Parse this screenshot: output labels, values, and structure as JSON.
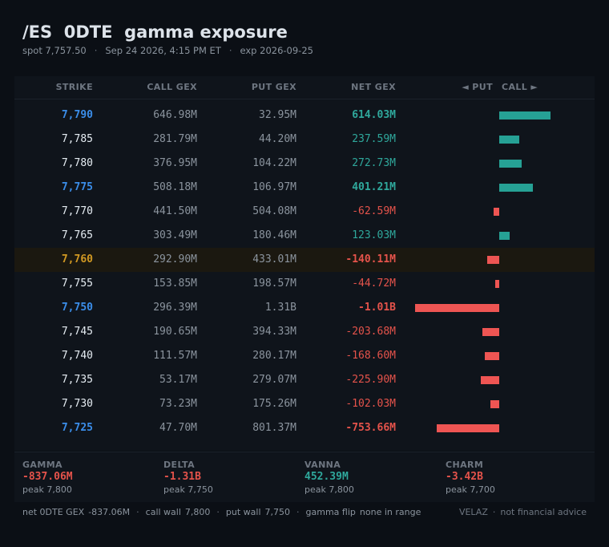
{
  "header": {
    "title": "/ES  0DTE  gamma exposure",
    "spot": "spot 7,757.50",
    "datetime": "Sep 24 2026, 4:15 PM ET",
    "expiry": "exp 2026-09-25",
    "separator": "·"
  },
  "columns": {
    "strike": "STRIKE",
    "call_gex": "CALL GEX",
    "put_gex": "PUT GEX",
    "net_gex": "NET GEX",
    "put_side": "◄ PUT",
    "call_side": "CALL ►"
  },
  "rows": [
    {
      "strike": "7,790",
      "call": "646.98M",
      "put": "32.95M",
      "net": "614.03M",
      "kind": "key"
    },
    {
      "strike": "7,785",
      "call": "281.79M",
      "put": "44.20M",
      "net": "237.59M",
      "kind": ""
    },
    {
      "strike": "7,780",
      "call": "376.95M",
      "put": "104.22M",
      "net": "272.73M",
      "kind": ""
    },
    {
      "strike": "7,775",
      "call": "508.18M",
      "put": "106.97M",
      "net": "401.21M",
      "kind": "key"
    },
    {
      "strike": "7,770",
      "call": "441.50M",
      "put": "504.08M",
      "net": "-62.59M",
      "kind": ""
    },
    {
      "strike": "7,765",
      "call": "303.49M",
      "put": "180.46M",
      "net": "123.03M",
      "kind": ""
    },
    {
      "strike": "7,760",
      "call": "292.90M",
      "put": "433.01M",
      "net": "-140.11M",
      "kind": "spot"
    },
    {
      "strike": "7,755",
      "call": "153.85M",
      "put": "198.57M",
      "net": "-44.72M",
      "kind": ""
    },
    {
      "strike": "7,750",
      "call": "296.39M",
      "put": "1.31B",
      "net": "-1.01B",
      "kind": "key"
    },
    {
      "strike": "7,745",
      "call": "190.65M",
      "put": "394.33M",
      "net": "-203.68M",
      "kind": ""
    },
    {
      "strike": "7,740",
      "call": "111.57M",
      "put": "280.17M",
      "net": "-168.60M",
      "kind": ""
    },
    {
      "strike": "7,735",
      "call": "53.17M",
      "put": "279.07M",
      "net": "-225.90M",
      "kind": ""
    },
    {
      "strike": "7,730",
      "call": "73.23M",
      "put": "175.26M",
      "net": "-102.03M",
      "kind": ""
    },
    {
      "strike": "7,725",
      "call": "47.70M",
      "put": "801.37M",
      "net": "-753.66M",
      "kind": "key"
    }
  ],
  "chart_data": {
    "type": "bar",
    "orientation": "horizontal",
    "categories": [
      "7,790",
      "7,785",
      "7,780",
      "7,775",
      "7,770",
      "7,765",
      "7,760",
      "7,755",
      "7,750",
      "7,745",
      "7,740",
      "7,735",
      "7,730",
      "7,725"
    ],
    "values": [
      614.03,
      237.59,
      272.73,
      401.21,
      -62.59,
      123.03,
      -140.11,
      -44.72,
      -1010,
      -203.68,
      -168.6,
      -225.9,
      -102.03,
      -753.66
    ],
    "unit": "M",
    "colors": {
      "positive": "#26a195",
      "negative": "#ee5553"
    }
  },
  "summary": [
    {
      "label": "GAMMA",
      "value": "-837.06M",
      "peak": "peak 7,800",
      "sign": "neg"
    },
    {
      "label": "DELTA",
      "value": "-1.31B",
      "peak": "peak 7,750",
      "sign": "neg"
    },
    {
      "label": "VANNA",
      "value": "452.39M",
      "peak": "peak 7,800",
      "sign": "pos"
    },
    {
      "label": "CHARM",
      "value": "-3.42B",
      "peak": "peak 7,700",
      "sign": "neg"
    }
  ],
  "footer": {
    "net_label": "net 0DTE GEX",
    "net_value": "-837.06M",
    "call_wall_label": "call wall",
    "call_wall_value": "7,800",
    "put_wall_label": "put wall",
    "put_wall_value": "7,750",
    "flip_label": "gamma flip",
    "flip_value": "none in range",
    "brand": "VELAZ",
    "disclaimer": "not financial advice"
  },
  "colors": {
    "background": "#0b0f15",
    "positive": "#2fa89c",
    "negative": "#e5534b",
    "key_strike": "#3b8eea",
    "spot_strike": "#d29922"
  }
}
